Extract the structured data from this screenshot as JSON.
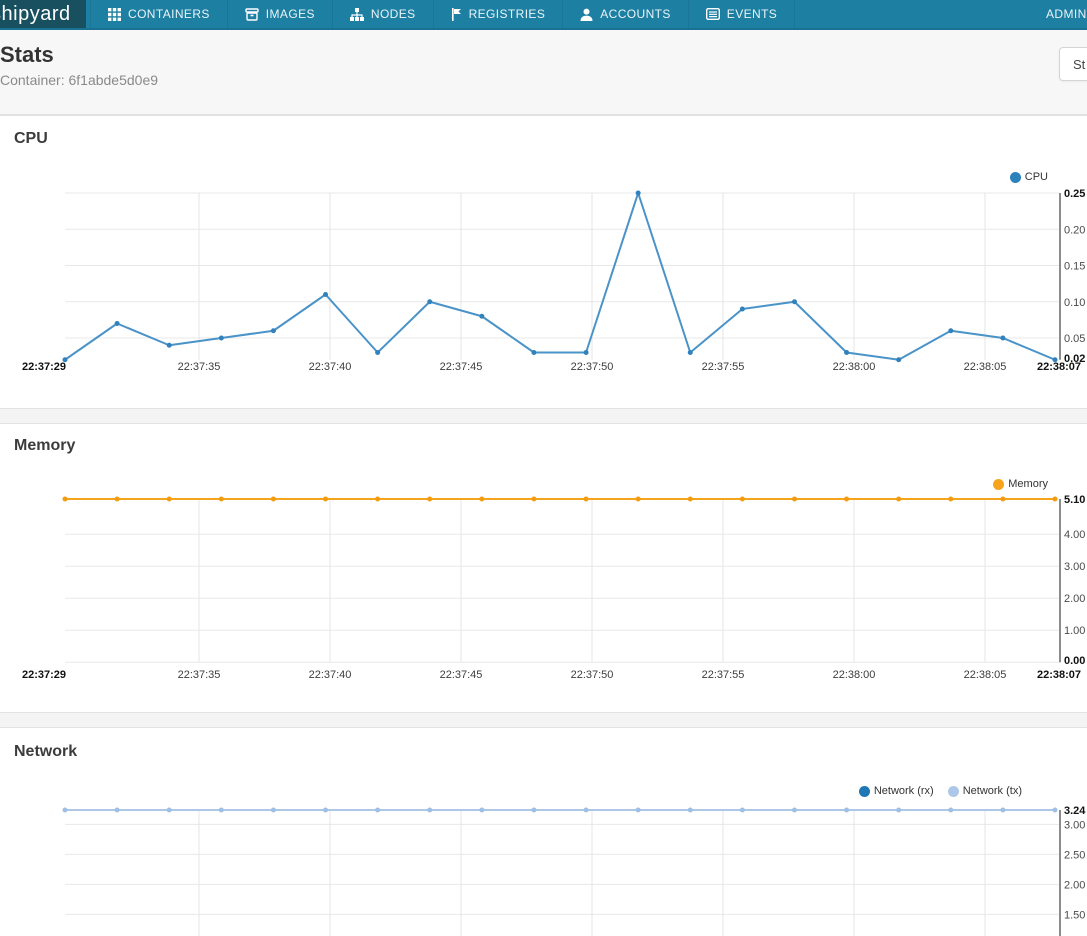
{
  "navbar": {
    "logo": "shipyard",
    "items": [
      {
        "label": "CONTAINERS",
        "icon": "grid-icon"
      },
      {
        "label": "IMAGES",
        "icon": "archive-icon"
      },
      {
        "label": "NODES",
        "icon": "sitemap-icon"
      },
      {
        "label": "REGISTRIES",
        "icon": "flag-icon"
      },
      {
        "label": "ACCOUNTS",
        "icon": "user-icon"
      },
      {
        "label": "EVENTS",
        "icon": "list-icon"
      }
    ],
    "right_label": "ADMIN"
  },
  "header": {
    "title": "Stats",
    "subtitle": "Container: 6f1abde5d0e9",
    "button_label": "St"
  },
  "colors": {
    "navbar_bg": "#1d7fa2",
    "logo_bg": "#18505f",
    "cpu_line": "#4a93c8",
    "cpu_dot": "#3181bd",
    "memory_line": "#f7a41d",
    "memory_dot": "#f39c12",
    "network_rx": "#1f77b4",
    "network_tx": "#aec7e8",
    "grid_line": "#e8e8e8",
    "axis_line": "#8c8c8c"
  },
  "chart_data": [
    {
      "type": "line",
      "title": "CPU",
      "legend": [
        {
          "name": "CPU",
          "color": "#2a81bc"
        }
      ],
      "x": [
        "22:37:29",
        "22:37:31",
        "22:37:33",
        "22:37:35",
        "22:37:37",
        "22:37:39",
        "22:37:41",
        "22:37:43",
        "22:37:45",
        "22:37:47",
        "22:37:49",
        "22:37:51",
        "22:37:53",
        "22:37:55",
        "22:37:57",
        "22:37:59",
        "22:38:01",
        "22:38:03",
        "22:38:05",
        "22:38:07"
      ],
      "series": [
        {
          "name": "CPU",
          "color": "#4a93c8",
          "dot": "#3181bd",
          "values": [
            0.02,
            0.07,
            0.04,
            0.05,
            0.06,
            0.11,
            0.03,
            0.1,
            0.08,
            0.03,
            0.03,
            0.25,
            0.03,
            0.09,
            0.1,
            0.03,
            0.02,
            0.06,
            0.05,
            0.02
          ]
        }
      ],
      "ylim": [
        0.02,
        0.25
      ],
      "grid": true,
      "legend_position": "top-right",
      "x_ticks": [
        {
          "label": "22:37:29",
          "bold": true
        },
        {
          "label": "22:37:35",
          "bold": false
        },
        {
          "label": "22:37:40",
          "bold": false
        },
        {
          "label": "22:37:45",
          "bold": false
        },
        {
          "label": "22:37:50",
          "bold": false
        },
        {
          "label": "22:37:55",
          "bold": false
        },
        {
          "label": "22:38:00",
          "bold": false
        },
        {
          "label": "22:38:05",
          "bold": false
        },
        {
          "label": "22:38:07",
          "bold": true
        }
      ],
      "y_ticks": [
        {
          "value": 0.25,
          "label": "0.25",
          "bold": true
        },
        {
          "value": 0.2,
          "label": "0.20",
          "bold": false
        },
        {
          "value": 0.15,
          "label": "0.15",
          "bold": false
        },
        {
          "value": 0.1,
          "label": "0.10",
          "bold": false
        },
        {
          "value": 0.05,
          "label": "0.05",
          "bold": false
        },
        {
          "value": 0.02,
          "label": "0.02",
          "bold": true
        }
      ],
      "grid_values": [
        0.25,
        0.2,
        0.15,
        0.1,
        0.05
      ]
    },
    {
      "type": "line",
      "title": "Memory",
      "legend": [
        {
          "name": "Memory",
          "color": "#f7a41d"
        }
      ],
      "x": [
        "22:37:29",
        "22:37:31",
        "22:37:33",
        "22:37:35",
        "22:37:37",
        "22:37:39",
        "22:37:41",
        "22:37:43",
        "22:37:45",
        "22:37:47",
        "22:37:49",
        "22:37:51",
        "22:37:53",
        "22:37:55",
        "22:37:57",
        "22:37:59",
        "22:38:01",
        "22:38:03",
        "22:38:05",
        "22:38:07"
      ],
      "series": [
        {
          "name": "Memory",
          "color": "#f7a41d",
          "dot": "#f39c12",
          "values": [
            5.1,
            5.1,
            5.1,
            5.1,
            5.1,
            5.1,
            5.1,
            5.1,
            5.1,
            5.1,
            5.1,
            5.1,
            5.1,
            5.1,
            5.1,
            5.1,
            5.1,
            5.1,
            5.1,
            5.1
          ]
        }
      ],
      "ylim": [
        0.0,
        5.1
      ],
      "grid": true,
      "legend_position": "top-right",
      "x_ticks": [
        {
          "label": "22:37:29",
          "bold": true
        },
        {
          "label": "22:37:35",
          "bold": false
        },
        {
          "label": "22:37:40",
          "bold": false
        },
        {
          "label": "22:37:45",
          "bold": false
        },
        {
          "label": "22:37:50",
          "bold": false
        },
        {
          "label": "22:37:55",
          "bold": false
        },
        {
          "label": "22:38:00",
          "bold": false
        },
        {
          "label": "22:38:05",
          "bold": false
        },
        {
          "label": "22:38:07",
          "bold": true
        }
      ],
      "y_ticks": [
        {
          "value": 5.1,
          "label": "5.10",
          "bold": true
        },
        {
          "value": 4.0,
          "label": "4.00",
          "bold": false
        },
        {
          "value": 3.0,
          "label": "3.00",
          "bold": false
        },
        {
          "value": 2.0,
          "label": "2.00",
          "bold": false
        },
        {
          "value": 1.0,
          "label": "1.00",
          "bold": false
        },
        {
          "value": 0.0,
          "label": "0.00",
          "bold": true
        }
      ],
      "grid_values": [
        4.0,
        3.0,
        2.0,
        1.0,
        0.0
      ]
    },
    {
      "type": "line",
      "title": "Network",
      "legend": [
        {
          "name": "Network (rx)",
          "color": "#1f77b4"
        },
        {
          "name": "Network (tx)",
          "color": "#aec7e8"
        }
      ],
      "x": [
        "22:37:29",
        "22:37:31",
        "22:37:33",
        "22:37:35",
        "22:37:37",
        "22:37:39",
        "22:37:41",
        "22:37:43",
        "22:37:45",
        "22:37:47",
        "22:37:49",
        "22:37:51",
        "22:37:53",
        "22:37:55",
        "22:37:57",
        "22:37:59",
        "22:38:01",
        "22:38:03",
        "22:38:05",
        "22:38:07"
      ],
      "series": [
        {
          "name": "Network (rx)",
          "color": "#1f77b4",
          "dot": "#1f77b4",
          "values": [],
          "note": "rx line not visible in the captured viewport"
        },
        {
          "name": "Network (tx)",
          "color": "#aec7e8",
          "dot": "#9fc0e4",
          "values": [
            3.24,
            3.24,
            3.24,
            3.24,
            3.24,
            3.24,
            3.24,
            3.24,
            3.24,
            3.24,
            3.24,
            3.24,
            3.24,
            3.24,
            3.24,
            3.24,
            3.24,
            3.24,
            3.24,
            3.24
          ]
        }
      ],
      "ylim_visible_top": 3.24,
      "grid": true,
      "legend_position": "top-right",
      "x_ticks": [],
      "y_ticks": [
        {
          "value": 3.24,
          "label": "3.24",
          "bold": true
        },
        {
          "value": 3.0,
          "label": "3.00",
          "bold": false
        },
        {
          "value": 2.5,
          "label": "2.50",
          "bold": false
        },
        {
          "value": 2.0,
          "label": "2.00",
          "bold": false
        },
        {
          "value": 1.5,
          "label": "1.50",
          "bold": false
        }
      ],
      "grid_values": [
        3.0,
        2.5,
        2.0,
        1.5
      ]
    }
  ]
}
